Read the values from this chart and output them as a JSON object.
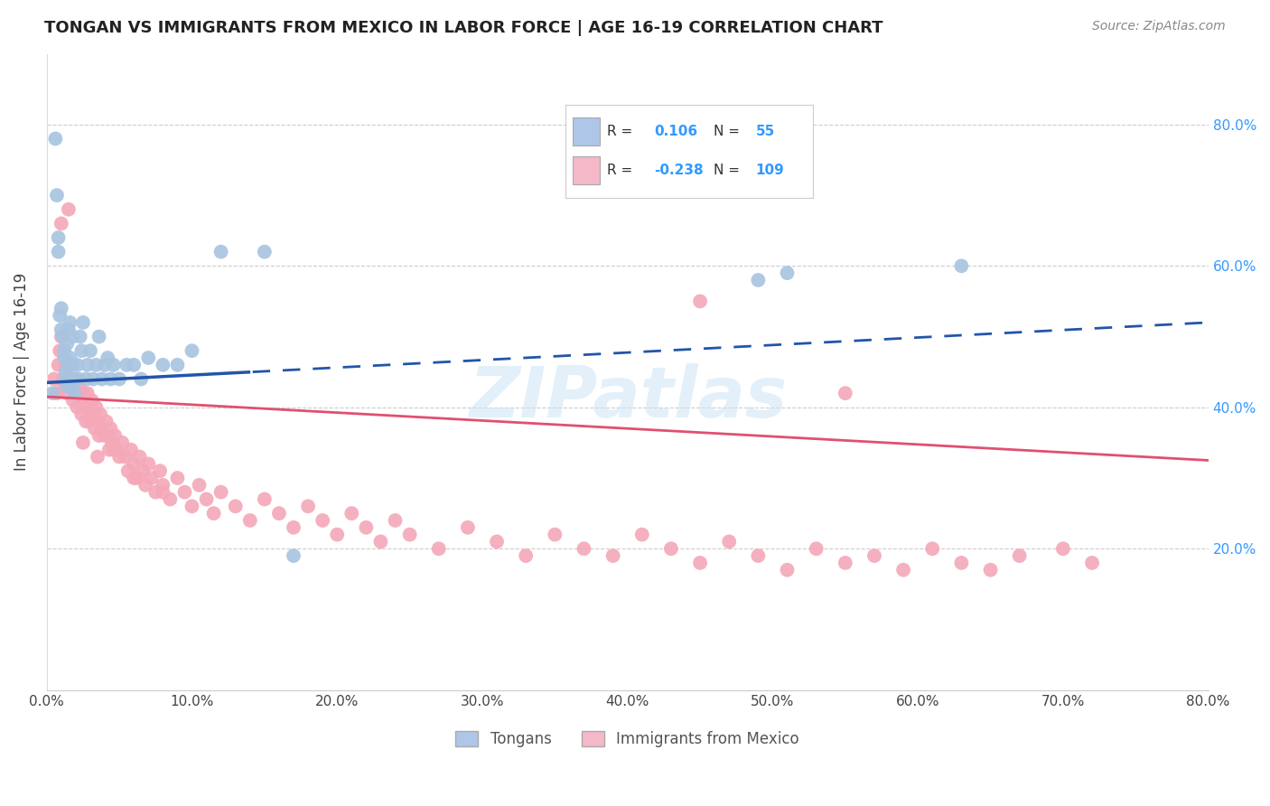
{
  "title": "TONGAN VS IMMIGRANTS FROM MEXICO IN LABOR FORCE | AGE 16-19 CORRELATION CHART",
  "source": "Source: ZipAtlas.com",
  "ylabel": "In Labor Force | Age 16-19",
  "xmin": 0.0,
  "xmax": 0.8,
  "ymin": 0.0,
  "ymax": 0.9,
  "blue_R": 0.106,
  "blue_N": 55,
  "pink_R": -0.238,
  "pink_N": 109,
  "blue_color": "#a8c4e0",
  "pink_color": "#f4a8b8",
  "blue_line_color": "#2255aa",
  "pink_line_color": "#e05070",
  "legend_blue_fill": "#aec6e8",
  "legend_pink_fill": "#f4b8c8",
  "blue_x": [
    0.004,
    0.006,
    0.007,
    0.008,
    0.008,
    0.009,
    0.01,
    0.01,
    0.011,
    0.012,
    0.012,
    0.013,
    0.013,
    0.014,
    0.014,
    0.015,
    0.015,
    0.016,
    0.016,
    0.017,
    0.017,
    0.018,
    0.018,
    0.019,
    0.02,
    0.021,
    0.022,
    0.023,
    0.024,
    0.025,
    0.027,
    0.028,
    0.03,
    0.032,
    0.034,
    0.036,
    0.038,
    0.04,
    0.042,
    0.044,
    0.046,
    0.05,
    0.055,
    0.06,
    0.065,
    0.07,
    0.08,
    0.09,
    0.1,
    0.12,
    0.15,
    0.17,
    0.49,
    0.51,
    0.63
  ],
  "blue_y": [
    0.42,
    0.78,
    0.7,
    0.62,
    0.64,
    0.53,
    0.54,
    0.51,
    0.5,
    0.48,
    0.47,
    0.45,
    0.44,
    0.43,
    0.49,
    0.51,
    0.46,
    0.47,
    0.52,
    0.44,
    0.43,
    0.46,
    0.5,
    0.42,
    0.44,
    0.46,
    0.44,
    0.5,
    0.48,
    0.52,
    0.44,
    0.46,
    0.48,
    0.44,
    0.46,
    0.5,
    0.44,
    0.46,
    0.47,
    0.44,
    0.46,
    0.44,
    0.46,
    0.46,
    0.44,
    0.47,
    0.46,
    0.46,
    0.48,
    0.62,
    0.62,
    0.19,
    0.58,
    0.59,
    0.6
  ],
  "pink_x": [
    0.005,
    0.007,
    0.008,
    0.009,
    0.01,
    0.011,
    0.012,
    0.013,
    0.014,
    0.015,
    0.016,
    0.017,
    0.018,
    0.019,
    0.02,
    0.021,
    0.022,
    0.023,
    0.024,
    0.025,
    0.026,
    0.027,
    0.028,
    0.029,
    0.03,
    0.031,
    0.032,
    0.033,
    0.034,
    0.035,
    0.036,
    0.037,
    0.038,
    0.04,
    0.041,
    0.042,
    0.043,
    0.044,
    0.045,
    0.046,
    0.047,
    0.048,
    0.05,
    0.052,
    0.054,
    0.056,
    0.058,
    0.06,
    0.062,
    0.064,
    0.066,
    0.068,
    0.07,
    0.072,
    0.075,
    0.078,
    0.08,
    0.085,
    0.09,
    0.095,
    0.1,
    0.105,
    0.11,
    0.115,
    0.12,
    0.13,
    0.14,
    0.15,
    0.16,
    0.17,
    0.18,
    0.19,
    0.2,
    0.21,
    0.22,
    0.23,
    0.24,
    0.25,
    0.27,
    0.29,
    0.31,
    0.33,
    0.35,
    0.37,
    0.39,
    0.41,
    0.43,
    0.45,
    0.47,
    0.49,
    0.51,
    0.53,
    0.55,
    0.57,
    0.59,
    0.61,
    0.63,
    0.65,
    0.67,
    0.7,
    0.72,
    0.01,
    0.015,
    0.45,
    0.55,
    0.025,
    0.035,
    0.06,
    0.08
  ],
  "pink_y": [
    0.44,
    0.42,
    0.46,
    0.48,
    0.5,
    0.44,
    0.43,
    0.46,
    0.42,
    0.44,
    0.46,
    0.43,
    0.41,
    0.44,
    0.42,
    0.4,
    0.43,
    0.41,
    0.39,
    0.42,
    0.4,
    0.38,
    0.42,
    0.4,
    0.38,
    0.41,
    0.39,
    0.37,
    0.4,
    0.38,
    0.36,
    0.39,
    0.37,
    0.36,
    0.38,
    0.36,
    0.34,
    0.37,
    0.35,
    0.34,
    0.36,
    0.34,
    0.33,
    0.35,
    0.33,
    0.31,
    0.34,
    0.32,
    0.3,
    0.33,
    0.31,
    0.29,
    0.32,
    0.3,
    0.28,
    0.31,
    0.29,
    0.27,
    0.3,
    0.28,
    0.26,
    0.29,
    0.27,
    0.25,
    0.28,
    0.26,
    0.24,
    0.27,
    0.25,
    0.23,
    0.26,
    0.24,
    0.22,
    0.25,
    0.23,
    0.21,
    0.24,
    0.22,
    0.2,
    0.23,
    0.21,
    0.19,
    0.22,
    0.2,
    0.19,
    0.22,
    0.2,
    0.18,
    0.21,
    0.19,
    0.17,
    0.2,
    0.18,
    0.19,
    0.17,
    0.2,
    0.18,
    0.17,
    0.19,
    0.2,
    0.18,
    0.66,
    0.68,
    0.55,
    0.42,
    0.35,
    0.33,
    0.3,
    0.28
  ],
  "watermark": "ZIPatlas",
  "background_color": "#ffffff",
  "grid_color": "#cccccc"
}
